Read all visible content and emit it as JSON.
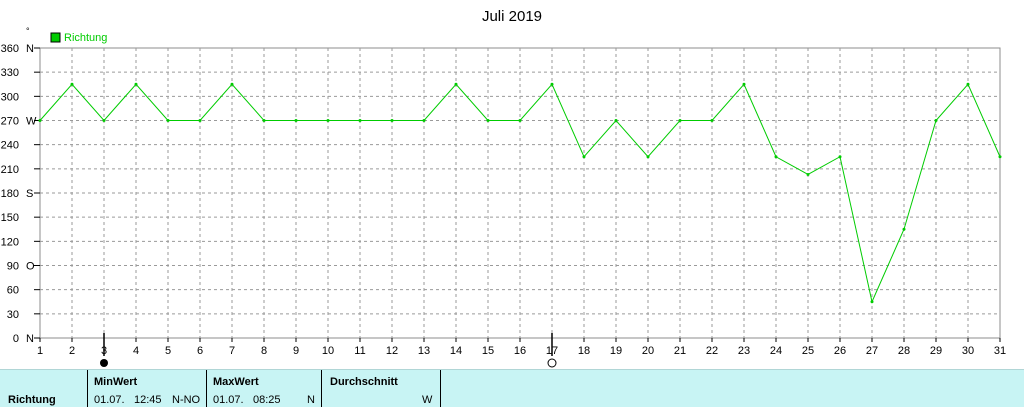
{
  "chart_data": {
    "type": "line",
    "title": "Juli 2019",
    "unit_label": "°",
    "xlabel": "",
    "ylabel": "",
    "xlim": [
      1,
      31
    ],
    "ylim": [
      0,
      360
    ],
    "grid": true,
    "legend_placement": "top-left",
    "x_ticks": [
      1,
      2,
      3,
      4,
      5,
      6,
      7,
      8,
      9,
      10,
      11,
      12,
      13,
      14,
      15,
      16,
      17,
      18,
      19,
      20,
      21,
      22,
      23,
      24,
      25,
      26,
      27,
      28,
      29,
      30,
      31
    ],
    "y_ticks": [
      {
        "value": 0,
        "label": "0",
        "dir": "N"
      },
      {
        "value": 30,
        "label": "30",
        "dir": ""
      },
      {
        "value": 60,
        "label": "60",
        "dir": ""
      },
      {
        "value": 90,
        "label": "90",
        "dir": "O"
      },
      {
        "value": 120,
        "label": "120",
        "dir": ""
      },
      {
        "value": 150,
        "label": "150",
        "dir": ""
      },
      {
        "value": 180,
        "label": "180",
        "dir": "S"
      },
      {
        "value": 210,
        "label": "210",
        "dir": ""
      },
      {
        "value": 240,
        "label": "240",
        "dir": ""
      },
      {
        "value": 270,
        "label": "270",
        "dir": "W"
      },
      {
        "value": 300,
        "label": "300",
        "dir": ""
      },
      {
        "value": 330,
        "label": "330",
        "dir": ""
      },
      {
        "value": 360,
        "label": "360",
        "dir": "N"
      }
    ],
    "series": [
      {
        "name": "Richtung",
        "color": "#00cc00",
        "x": [
          1,
          2,
          3,
          4,
          5,
          6,
          7,
          8,
          9,
          10,
          11,
          12,
          13,
          14,
          15,
          16,
          17,
          18,
          19,
          20,
          21,
          22,
          23,
          24,
          25,
          26,
          27,
          28,
          29,
          30,
          31
        ],
        "values": [
          270,
          315,
          270,
          315,
          270,
          270,
          315,
          270,
          270,
          270,
          270,
          270,
          270,
          315,
          270,
          270,
          315,
          225,
          270,
          225,
          270,
          270,
          315,
          225,
          203,
          225,
          45,
          135,
          270,
          315,
          225
        ]
      }
    ],
    "markers": [
      {
        "x": 3,
        "symbol": "filled-circle"
      },
      {
        "x": 17,
        "symbol": "open-circle"
      }
    ]
  },
  "footer": {
    "label": "Richtung",
    "min": {
      "header": "MinWert",
      "date": "01.07.",
      "time": "12:45",
      "value": "N-NO"
    },
    "max": {
      "header": "MaxWert",
      "date": "01.07.",
      "time": "08:25",
      "value": "N"
    },
    "avg": {
      "header": "Durchschnitt",
      "value": "W"
    }
  },
  "colors": {
    "series": "#00cc00",
    "footer_bg": "#c8f4f4",
    "grid": "#9a9a9a"
  }
}
